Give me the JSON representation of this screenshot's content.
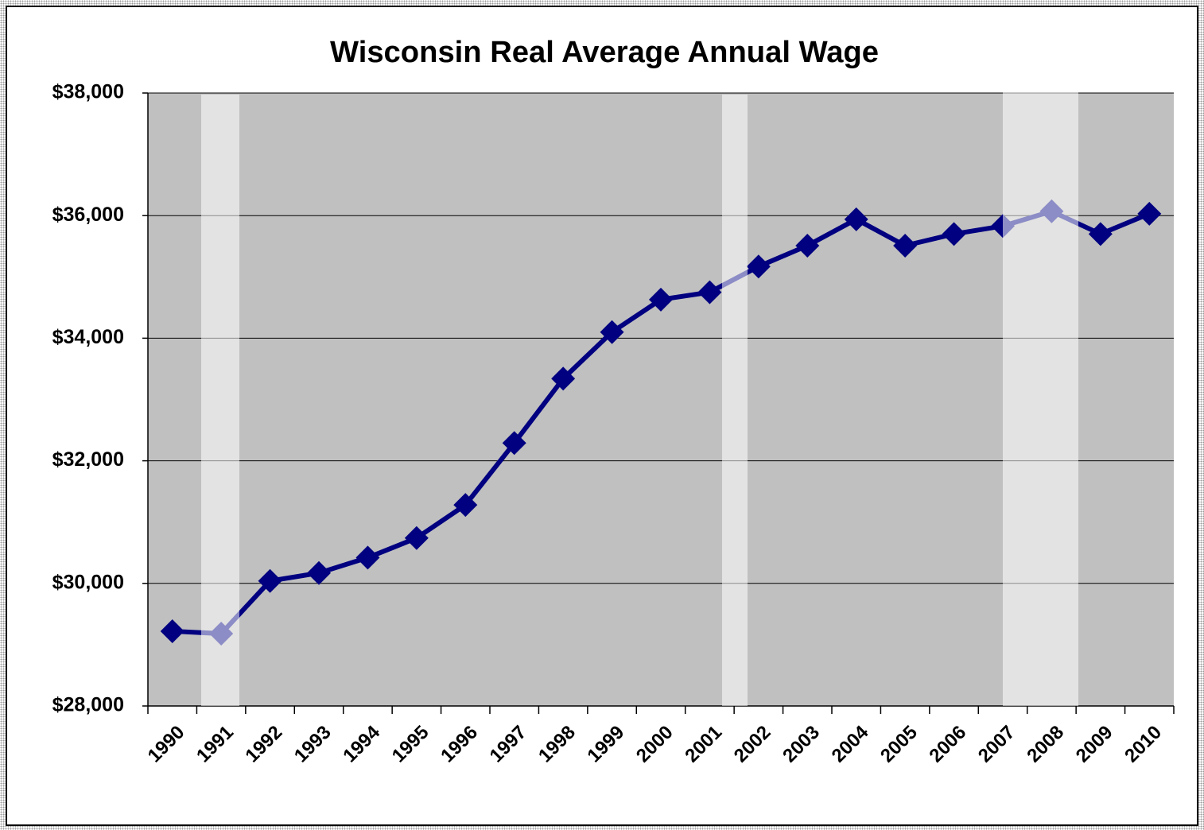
{
  "chart_data": {
    "type": "line",
    "title": "Wisconsin Real Average Annual Wage",
    "categories": [
      "1990",
      "1991",
      "1992",
      "1993",
      "1994",
      "1995",
      "1996",
      "1997",
      "1998",
      "1999",
      "2000",
      "2001",
      "2002",
      "2003",
      "2004",
      "2005",
      "2006",
      "2007",
      "2008",
      "2009",
      "2010"
    ],
    "series": [
      {
        "color": "#000080",
        "values": [
          29220,
          29180,
          30040,
          30170,
          30420,
          30740,
          31280,
          32290,
          33340,
          34100,
          34630,
          34750,
          35170,
          35510,
          35940,
          35510,
          35700,
          35830,
          36070,
          35700,
          36030
        ]
      }
    ],
    "ylim": [
      28000,
      38000
    ],
    "yticks": [
      {
        "value": 28000,
        "label": "$28,000"
      },
      {
        "value": 30000,
        "label": "$30,000"
      },
      {
        "value": 32000,
        "label": "$32,000"
      },
      {
        "value": 34000,
        "label": "$34,000"
      },
      {
        "value": 36000,
        "label": "$36,000"
      },
      {
        "value": 38000,
        "label": "$38,000"
      }
    ],
    "grid": true
  }
}
